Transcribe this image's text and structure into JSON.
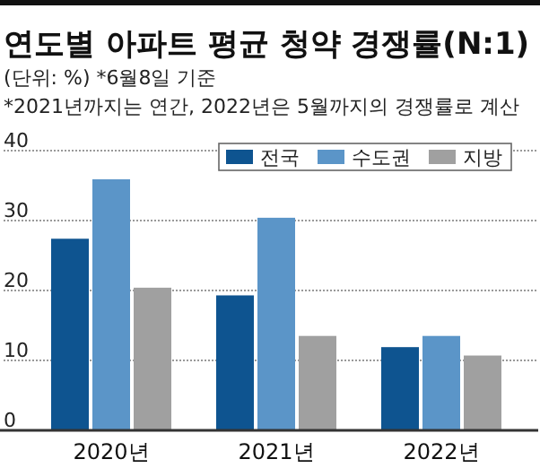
{
  "chart_data": {
    "type": "bar",
    "title": "연도별 아파트 평균 청약 경쟁률(N:1)",
    "subtitle": "(단위: %) *6월8일 기준",
    "annotations": [
      "*2021년까지는 연간, 2022년은 5월까지의 경쟁률로 계산"
    ],
    "categories": [
      "2020년",
      "2021년",
      "2022년"
    ],
    "series": [
      {
        "name": "전국",
        "color": "#0e5490",
        "values": [
          27.4,
          19.3,
          11.9
        ]
      },
      {
        "name": "수도권",
        "color": "#5b95c8",
        "values": [
          35.9,
          30.4,
          13.5
        ]
      },
      {
        "name": "지방",
        "color": "#a0a0a0",
        "values": [
          20.4,
          13.5,
          10.7
        ]
      }
    ],
    "ylim": [
      0,
      40
    ],
    "yticks": [
      0,
      10,
      20,
      30,
      40
    ],
    "grid": "y",
    "legend": "top right"
  }
}
